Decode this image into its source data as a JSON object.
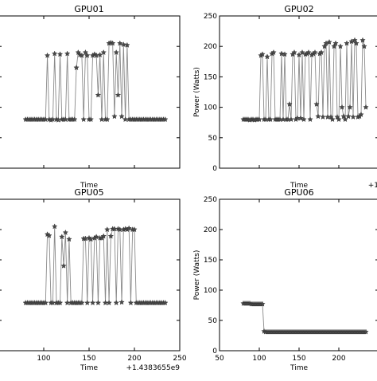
{
  "chart_data": [
    {
      "type": "line",
      "title": "GPU01",
      "xlabel": "Time",
      "ylabel": "",
      "xlim": [
        50,
        250
      ],
      "ylim": [
        0,
        250
      ],
      "x_ticks": [],
      "y_ticks": [],
      "x_offset_label": "",
      "marker": "star",
      "series": [
        {
          "x": [
            80,
            82,
            84,
            86,
            88,
            90,
            92,
            94,
            96,
            98,
            100,
            102,
            104,
            106,
            108,
            110,
            112,
            114,
            116,
            118,
            120,
            122,
            124,
            126,
            128,
            130,
            132,
            134,
            136,
            138,
            140,
            142,
            144,
            146,
            148,
            150,
            152,
            154,
            156,
            158,
            160,
            162,
            164,
            166,
            168,
            170,
            172,
            174,
            176,
            178,
            180,
            182,
            184,
            186,
            188,
            190,
            192,
            194,
            196,
            198,
            200,
            202,
            204,
            206,
            208,
            210,
            212,
            214,
            216,
            218,
            220,
            222,
            224,
            226,
            228,
            230,
            232,
            234
          ],
          "values": [
            80,
            80,
            80,
            80,
            80,
            80,
            80,
            80,
            80,
            80,
            80,
            80,
            185,
            80,
            79,
            80,
            188,
            80,
            79,
            187,
            80,
            80,
            80,
            188,
            80,
            80,
            80,
            80,
            165,
            190,
            186,
            185,
            80,
            190,
            185,
            80,
            80,
            185,
            187,
            185,
            120,
            186,
            80,
            190,
            80,
            80,
            205,
            206,
            205,
            85,
            190,
            120,
            205,
            85,
            203,
            80,
            202,
            80,
            80,
            80,
            80,
            80,
            80,
            80,
            80,
            80,
            80,
            80,
            80,
            80,
            80,
            80,
            80,
            80,
            80,
            80,
            80,
            80
          ]
        }
      ]
    },
    {
      "type": "line",
      "title": "GPU02",
      "xlabel": "Time",
      "ylabel": "Power (Watts)",
      "xlim": [
        50,
        250
      ],
      "ylim": [
        0,
        250
      ],
      "x_ticks": [],
      "y_ticks": [
        0,
        50,
        100,
        150,
        200,
        250
      ],
      "x_offset_label": "+1",
      "marker": "star",
      "series": [
        {
          "x": [
            80,
            82,
            84,
            86,
            88,
            90,
            92,
            94,
            96,
            98,
            100,
            102,
            104,
            106,
            108,
            110,
            112,
            114,
            116,
            118,
            120,
            122,
            124,
            126,
            128,
            130,
            132,
            134,
            136,
            138,
            140,
            142,
            144,
            146,
            148,
            150,
            152,
            154,
            156,
            158,
            160,
            162,
            164,
            166,
            168,
            170,
            172,
            174,
            176,
            178,
            180,
            182,
            184,
            186,
            188,
            190,
            192,
            194,
            196,
            198,
            200,
            202,
            204,
            206,
            208,
            210,
            212,
            214,
            216,
            218,
            220,
            222,
            224,
            226,
            228,
            230,
            232,
            234
          ],
          "values": [
            80,
            80,
            80,
            80,
            79,
            80,
            80,
            79,
            80,
            80,
            80,
            185,
            187,
            80,
            80,
            183,
            80,
            80,
            188,
            190,
            80,
            80,
            80,
            80,
            188,
            80,
            187,
            80,
            80,
            105,
            80,
            187,
            190,
            80,
            82,
            186,
            82,
            190,
            80,
            187,
            188,
            190,
            80,
            186,
            188,
            190,
            105,
            85,
            188,
            190,
            84,
            200,
            205,
            84,
            207,
            84,
            80,
            200,
            205,
            84,
            80,
            200,
            100,
            85,
            80,
            205,
            85,
            100,
            208,
            84,
            210,
            205,
            84,
            85,
            88,
            210,
            200,
            100
          ]
        }
      ]
    },
    {
      "type": "line",
      "title": "GPU05",
      "xlabel": "Time",
      "ylabel": "",
      "xlim": [
        50,
        250
      ],
      "ylim": [
        0,
        250
      ],
      "x_ticks": [
        100,
        150,
        200,
        250
      ],
      "y_ticks": [],
      "x_offset_label": "+1.4383655e9",
      "marker": "star",
      "series": [
        {
          "x": [
            80,
            82,
            84,
            86,
            88,
            90,
            92,
            94,
            96,
            98,
            100,
            102,
            104,
            106,
            108,
            110,
            112,
            114,
            116,
            118,
            120,
            122,
            124,
            126,
            128,
            130,
            132,
            134,
            136,
            138,
            140,
            142,
            144,
            146,
            148,
            150,
            152,
            154,
            156,
            158,
            160,
            162,
            164,
            166,
            168,
            170,
            172,
            174,
            176,
            178,
            180,
            182,
            184,
            186,
            188,
            190,
            192,
            194,
            196,
            198,
            200,
            202,
            204,
            206,
            208,
            210,
            212,
            214,
            216,
            218,
            220,
            222,
            224,
            226,
            228,
            230,
            232,
            234
          ],
          "values": [
            79,
            79,
            79,
            79,
            79,
            79,
            79,
            79,
            79,
            79,
            79,
            79,
            192,
            190,
            79,
            79,
            205,
            79,
            79,
            79,
            188,
            140,
            195,
            79,
            184,
            79,
            79,
            79,
            79,
            79,
            79,
            79,
            185,
            185,
            79,
            186,
            184,
            79,
            186,
            188,
            79,
            186,
            186,
            189,
            79,
            200,
            79,
            189,
            201,
            201,
            79,
            201,
            200,
            80,
            200,
            201,
            200,
            202,
            79,
            200,
            200,
            79,
            79,
            79,
            79,
            79,
            79,
            79,
            79,
            79,
            79,
            79,
            79,
            79,
            79,
            79,
            79,
            79
          ]
        }
      ]
    },
    {
      "type": "line",
      "title": "GPU06",
      "xlabel": "Time",
      "ylabel": "Power (Watts)",
      "xlim": [
        50,
        250
      ],
      "ylim": [
        0,
        250
      ],
      "x_ticks": [
        50,
        100,
        150,
        200
      ],
      "y_ticks": [
        0,
        50,
        100,
        150,
        200,
        250
      ],
      "x_offset_label": "",
      "marker": "star",
      "series": [
        {
          "x": [
            80,
            82,
            84,
            86,
            88,
            90,
            92,
            94,
            96,
            98,
            100,
            102,
            104,
            106,
            108,
            110,
            112,
            114,
            116,
            118,
            120,
            122,
            124,
            126,
            128,
            130,
            132,
            134,
            136,
            138,
            140,
            142,
            144,
            146,
            148,
            150,
            152,
            154,
            156,
            158,
            160,
            162,
            164,
            166,
            168,
            170,
            172,
            174,
            176,
            178,
            180,
            182,
            184,
            186,
            188,
            190,
            192,
            194,
            196,
            198,
            200,
            202,
            204,
            206,
            208,
            210,
            212,
            214,
            216,
            218,
            220,
            222,
            224,
            226,
            228,
            230,
            232,
            234
          ],
          "values": [
            78,
            78,
            78,
            78,
            78,
            77,
            77,
            77,
            77,
            77,
            77,
            77,
            77,
            32,
            31,
            31,
            31,
            31,
            31,
            31,
            31,
            31,
            31,
            31,
            31,
            31,
            31,
            31,
            31,
            31,
            31,
            31,
            31,
            31,
            31,
            31,
            31,
            31,
            31,
            31,
            31,
            31,
            31,
            31,
            31,
            31,
            31,
            31,
            31,
            31,
            31,
            31,
            31,
            31,
            31,
            31,
            31,
            31,
            31,
            31,
            31,
            31,
            31,
            31,
            31,
            31,
            31,
            31,
            31,
            31,
            31,
            31,
            31,
            31,
            31,
            31,
            31,
            31
          ]
        }
      ]
    }
  ]
}
